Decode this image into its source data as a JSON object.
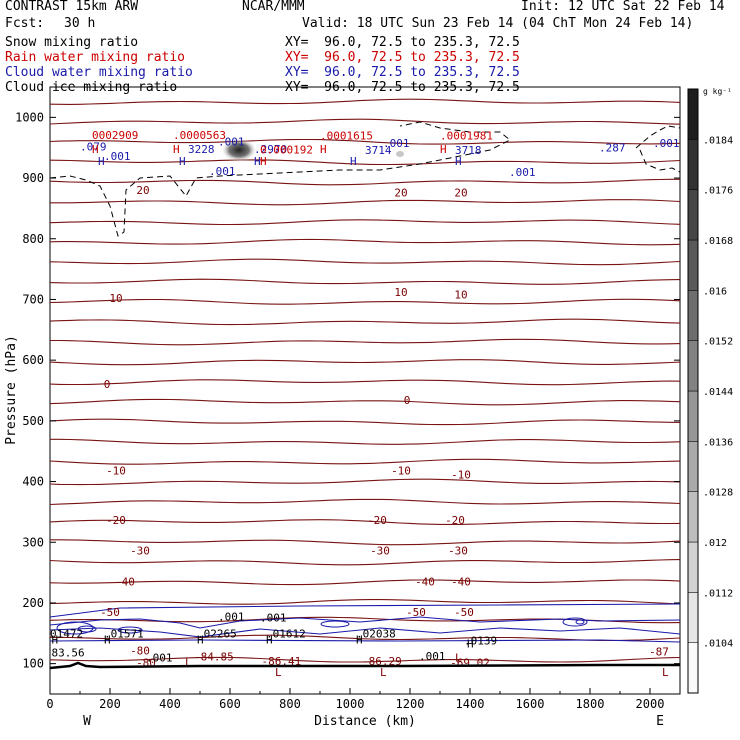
{
  "header": {
    "model": "CONTRAST 15km ARW",
    "org": "NCAR/MMM",
    "init": "Init: 12 UTC Sat 22 Feb 14",
    "fcst_label": "Fcst:",
    "fcst_value": "30 h",
    "valid": "Valid: 18 UTC Sun 23 Feb 14 (04 ChT Mon 24 Feb 14)"
  },
  "fields": [
    {
      "name": "Snow mixing ratio",
      "xy": "XY=  96.0, 72.5 to 235.3, 72.5",
      "color": "#000000"
    },
    {
      "name": "Rain water mixing ratio",
      "xy": "XY=  96.0, 72.5 to 235.3, 72.5",
      "color": "#cc0000"
    },
    {
      "name": "Cloud water mixing ratio",
      "xy": "XY=  96.0, 72.5 to 235.3, 72.5",
      "color": "#1a1aaa"
    },
    {
      "name": "Cloud ice mixing ratio",
      "xy": "XY=  96.0, 72.5 to 235.3, 72.5",
      "color": "#000000"
    }
  ],
  "chart_data": {
    "type": "cross-section",
    "xlabel": "Distance (km)",
    "ylabel": "Pressure (hPa)",
    "xlim": [
      0,
      2100
    ],
    "ylim": [
      1050,
      50
    ],
    "x_ticks": [
      0,
      200,
      400,
      600,
      800,
      1000,
      1200,
      1400,
      1600,
      1800,
      2000
    ],
    "y_ticks": [
      100,
      200,
      300,
      400,
      500,
      600,
      700,
      800,
      900,
      1000
    ],
    "left_end": "W",
    "right_end": "E",
    "colorbar": {
      "unit": "g kg⁻¹",
      "levels": [
        ".0104",
        ".0112",
        ".012",
        ".0128",
        ".0136",
        ".0144",
        ".0152",
        ".016",
        ".0168",
        ".0176",
        ".0184"
      ]
    },
    "temperature_labels": [
      {
        "x": 300,
        "p": 122,
        "text": "-80"
      },
      {
        "x": 320,
        "p": 102,
        "text": "-80"
      },
      {
        "x": 1400,
        "p": 102,
        "text": "-69.02"
      },
      {
        "x": 2030,
        "p": 120,
        "text": "-87"
      },
      {
        "x": 200,
        "p": 185,
        "text": "-50"
      },
      {
        "x": 1220,
        "p": 185,
        "text": "-50"
      },
      {
        "x": 1380,
        "p": 185,
        "text": "-50"
      },
      {
        "x": 250,
        "p": 235,
        "text": "-40"
      },
      {
        "x": 1250,
        "p": 235,
        "text": "-40"
      },
      {
        "x": 1370,
        "p": 235,
        "text": "-40"
      },
      {
        "x": 300,
        "p": 286,
        "text": "-30"
      },
      {
        "x": 1100,
        "p": 286,
        "text": "-30"
      },
      {
        "x": 1360,
        "p": 286,
        "text": "-30"
      },
      {
        "x": 220,
        "p": 337,
        "text": "-20"
      },
      {
        "x": 1090,
        "p": 337,
        "text": "-20"
      },
      {
        "x": 1350,
        "p": 337,
        "text": "-20"
      },
      {
        "x": 220,
        "p": 418,
        "text": "-10"
      },
      {
        "x": 1170,
        "p": 418,
        "text": "-10"
      },
      {
        "x": 1370,
        "p": 412,
        "text": "-10"
      },
      {
        "x": 190,
        "p": 561,
        "text": "0"
      },
      {
        "x": 1190,
        "p": 534,
        "text": "0"
      },
      {
        "x": 220,
        "p": 702,
        "text": "10"
      },
      {
        "x": 1170,
        "p": 712,
        "text": "10"
      },
      {
        "x": 1370,
        "p": 708,
        "text": "10"
      },
      {
        "x": 310,
        "p": 880,
        "text": "20"
      },
      {
        "x": 1170,
        "p": 876,
        "text": "20"
      },
      {
        "x": 1370,
        "p": 876,
        "text": "20"
      }
    ],
    "upper_annotations": [
      {
        "x": 5,
        "p": 118,
        "text": "83.56",
        "color": "#000000"
      },
      {
        "x": 320,
        "p": 110,
        "text": ".001",
        "color": "#000000"
      },
      {
        "x": 480,
        "p": 112,
        "text": "-84.85",
        "color": "#7a0000"
      },
      {
        "x": 705,
        "p": 104,
        "text": "-86.41",
        "color": "#7a0000"
      },
      {
        "x": 1040,
        "p": 104,
        "text": "-86.29",
        "color": "#7a0000"
      },
      {
        "x": 1230,
        "p": 113,
        "text": ".001",
        "color": "#000000"
      },
      {
        "x": 0,
        "p": 150,
        "text": "01472",
        "color": "#000000"
      },
      {
        "x": 180,
        "p": 150,
        "text": ".01571",
        "color": "#000000"
      },
      {
        "x": 490,
        "p": 150,
        "text": ".02265",
        "color": "#000000"
      },
      {
        "x": 720,
        "p": 150,
        "text": ".01612",
        "color": "#000000"
      },
      {
        "x": 1020,
        "p": 150,
        "text": ".02038",
        "color": "#000000"
      },
      {
        "x": 1380,
        "p": 138,
        "text": ".0139",
        "color": "#000000"
      },
      {
        "x": 560,
        "p": 178,
        "text": ".001",
        "color": "#000000"
      },
      {
        "x": 700,
        "p": 176,
        "text": ".001",
        "color": "#000000"
      }
    ],
    "lower_annotations": [
      {
        "x": 180,
        "p": 936,
        "text": ".001",
        "color": "#1a1aaa"
      },
      {
        "x": 530,
        "p": 912,
        "text": ".001",
        "color": "#1a1aaa"
      },
      {
        "x": 560,
        "p": 960,
        "text": ".001",
        "color": "#1a1aaa"
      },
      {
        "x": 1110,
        "p": 958,
        "text": ".001",
        "color": "#1a1aaa"
      },
      {
        "x": 1530,
        "p": 910,
        "text": ".001",
        "color": "#1a1aaa"
      },
      {
        "x": 2010,
        "p": 958,
        "text": ".001",
        "color": "#1a1aaa"
      },
      {
        "x": 1830,
        "p": 950,
        "text": ".287",
        "color": "#1a1aaa"
      },
      {
        "x": 100,
        "p": 952,
        "text": ".079",
        "color": "#1a1aaa"
      },
      {
        "x": 460,
        "p": 948,
        "text": "3228",
        "color": "#1a1aaa"
      },
      {
        "x": 680,
        "p": 948,
        "text": ".2970",
        "color": "#1a1aaa"
      },
      {
        "x": 1050,
        "p": 946,
        "text": "3714",
        "color": "#1a1aaa"
      },
      {
        "x": 1350,
        "p": 946,
        "text": "3718",
        "color": "#1a1aaa"
      },
      {
        "x": 140,
        "p": 971,
        "text": "0002909",
        "color": "#cc0000"
      },
      {
        "x": 410,
        "p": 971,
        "text": ".0000563",
        "color": "#cc0000"
      },
      {
        "x": 700,
        "p": 947,
        "text": "0.000192",
        "color": "#cc0000"
      },
      {
        "x": 900,
        "p": 970,
        "text": ".0001615",
        "color": "#cc0000"
      },
      {
        "x": 1300,
        "p": 970,
        "text": ".0001981",
        "color": "#cc0000"
      }
    ],
    "h_marks": [
      {
        "x": 5,
        "p": 140,
        "color": "#000000"
      },
      {
        "x": 180,
        "p": 140,
        "color": "#000000"
      },
      {
        "x": 490,
        "p": 140,
        "color": "#000000"
      },
      {
        "x": 720,
        "p": 140,
        "color": "#000000"
      },
      {
        "x": 1020,
        "p": 140,
        "color": "#000000"
      },
      {
        "x": 1390,
        "p": 133,
        "color": "#000000"
      },
      {
        "x": 160,
        "p": 928,
        "color": "#1a1aaa"
      },
      {
        "x": 430,
        "p": 928,
        "color": "#1a1aaa"
      },
      {
        "x": 680,
        "p": 928,
        "color": "#1a1aaa"
      },
      {
        "x": 1000,
        "p": 928,
        "color": "#1a1aaa"
      },
      {
        "x": 1350,
        "p": 928,
        "color": "#1a1aaa"
      },
      {
        "x": 140,
        "p": 948,
        "color": "#cc0000"
      },
      {
        "x": 410,
        "p": 948,
        "color": "#cc0000"
      },
      {
        "x": 700,
        "p": 928,
        "color": "#cc0000"
      },
      {
        "x": 900,
        "p": 948,
        "color": "#cc0000"
      },
      {
        "x": 1300,
        "p": 948,
        "color": "#cc0000"
      }
    ],
    "l_marks": [
      {
        "x": 450,
        "p": 102
      },
      {
        "x": 750,
        "p": 86
      },
      {
        "x": 1100,
        "p": 86
      },
      {
        "x": 1350,
        "p": 110
      },
      {
        "x": 2040,
        "p": 86
      }
    ]
  }
}
